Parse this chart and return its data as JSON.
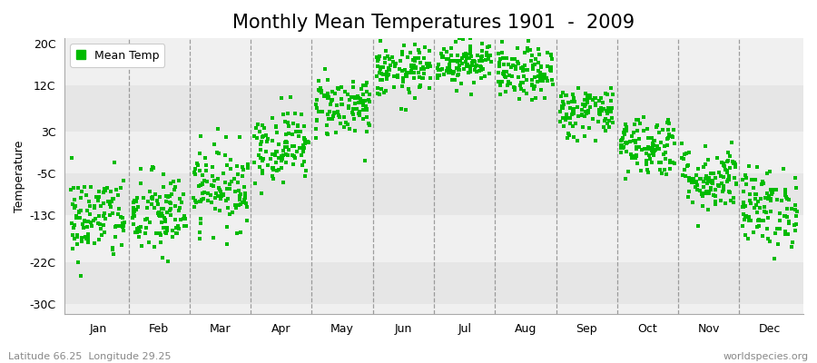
{
  "title": "Monthly Mean Temperatures 1901  -  2009",
  "ylabel": "Temperature",
  "footer_left": "Latitude 66.25  Longitude 29.25",
  "footer_right": "worldspecies.org",
  "legend_label": "Mean Temp",
  "yticks": [
    -30,
    -22,
    -13,
    -5,
    3,
    12,
    20
  ],
  "ytick_labels": [
    "-30C",
    "-22C",
    "-13C",
    "-5C",
    "3C",
    "12C",
    "20C"
  ],
  "ylim": [
    -32,
    21
  ],
  "months": [
    "Jan",
    "Feb",
    "Mar",
    "Apr",
    "May",
    "Jun",
    "Jul",
    "Aug",
    "Sep",
    "Oct",
    "Nov",
    "Dec"
  ],
  "dot_color": "#00bb00",
  "background_color": "#ffffff",
  "plot_bg_color_light": "#f0f0f0",
  "plot_bg_color_dark": "#e6e6e6",
  "monthly_means": [
    -13.5,
    -13.0,
    -7.5,
    0.5,
    8.0,
    14.5,
    16.5,
    14.0,
    7.0,
    0.5,
    -6.0,
    -11.5
  ],
  "monthly_stds": [
    4.2,
    4.2,
    4.0,
    3.5,
    3.0,
    2.5,
    2.2,
    2.5,
    2.5,
    3.0,
    3.2,
    3.8
  ],
  "n_years": 109,
  "seed": 42,
  "title_fontsize": 15,
  "axis_fontsize": 9,
  "tick_fontsize": 9,
  "footer_fontsize": 8
}
